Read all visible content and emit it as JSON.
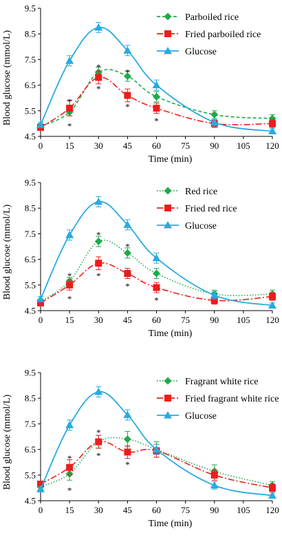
{
  "chart_data": [
    {
      "type": "line",
      "xlabel": "Time (min)",
      "ylabel": "Blood glucose (mmol/L)",
      "xlim": [
        0,
        120
      ],
      "ylim": [
        4.5,
        9.5
      ],
      "x_ticks": [
        "0",
        "15",
        "30",
        "45",
        "60",
        "75",
        "90",
        "105",
        "120"
      ],
      "y_ticks": [
        "4.5",
        "5.5",
        "6.5",
        "7.5",
        "8.5",
        "9.5"
      ],
      "grid": false,
      "legend_position": "top-right",
      "x": [
        0,
        15,
        30,
        45,
        60,
        90,
        120
      ],
      "series": [
        {
          "name": "Parboiled rice",
          "color": "#1faa4a",
          "marker": "diamond",
          "dash": "dashed",
          "values": [
            4.9,
            5.45,
            7.0,
            6.85,
            6.05,
            5.35,
            5.2
          ],
          "errors": [
            0.1,
            0.15,
            0.2,
            0.2,
            0.2,
            0.15,
            0.15
          ]
        },
        {
          "name": "Fried parboiled rice",
          "color": "#ee1c1c",
          "marker": "square",
          "dash": "dashdot",
          "values": [
            4.85,
            5.6,
            6.8,
            6.1,
            5.6,
            5.0,
            5.0
          ],
          "errors": [
            0.1,
            0.3,
            0.25,
            0.25,
            0.2,
            0.15,
            0.15
          ]
        },
        {
          "name": "Glucose",
          "color": "#28aae1",
          "marker": "triangle",
          "dash": "solid",
          "values": [
            4.95,
            7.45,
            8.75,
            7.85,
            6.5,
            5.05,
            4.7
          ],
          "errors": [
            0.1,
            0.2,
            0.2,
            0.2,
            0.2,
            0.15,
            0.1
          ]
        }
      ],
      "significance": [
        {
          "x": 15,
          "y_above": 5.95,
          "y_below": 5.0
        },
        {
          "x": 30,
          "y_above": 7.3,
          "y_below": 6.45
        },
        {
          "x": 45,
          "y_above": 7.1,
          "y_below": 5.75
        },
        {
          "x": 60,
          "y_below": 5.2
        }
      ]
    },
    {
      "type": "line",
      "xlabel": "Time (min)",
      "ylabel": "Blood glucose (mmol/L)",
      "xlim": [
        0,
        120
      ],
      "ylim": [
        4.5,
        9.5
      ],
      "x_ticks": [
        "0",
        "15",
        "30",
        "45",
        "60",
        "75",
        "90",
        "105",
        "120"
      ],
      "y_ticks": [
        "4.5",
        "5.5",
        "6.5",
        "7.5",
        "8.5",
        "9.5"
      ],
      "grid": false,
      "legend_position": "top-right",
      "x": [
        0,
        15,
        30,
        45,
        60,
        90,
        120
      ],
      "series": [
        {
          "name": "Red rice",
          "color": "#1faa4a",
          "marker": "diamond",
          "dash": "dotted",
          "values": [
            4.85,
            5.65,
            7.2,
            6.75,
            5.95,
            5.15,
            5.15
          ],
          "errors": [
            0.1,
            0.15,
            0.2,
            0.2,
            0.2,
            0.15,
            0.15
          ]
        },
        {
          "name": "Fried red rice",
          "color": "#ee1c1c",
          "marker": "square",
          "dash": "dashdot",
          "values": [
            4.8,
            5.5,
            6.35,
            5.95,
            5.4,
            4.9,
            5.05
          ],
          "errors": [
            0.1,
            0.2,
            0.25,
            0.2,
            0.2,
            0.15,
            0.15
          ]
        },
        {
          "name": "Glucose",
          "color": "#28aae1",
          "marker": "triangle",
          "dash": "solid",
          "values": [
            4.95,
            7.45,
            8.75,
            7.85,
            6.55,
            5.1,
            4.7
          ],
          "errors": [
            0.1,
            0.2,
            0.2,
            0.2,
            0.2,
            0.15,
            0.1
          ]
        }
      ],
      "significance": [
        {
          "x": 15,
          "y_above": 5.95,
          "y_below": 5.05
        },
        {
          "x": 30,
          "y_above": 7.55,
          "y_below": 5.95
        },
        {
          "x": 45,
          "y_above": 7.1,
          "y_below": 5.55
        },
        {
          "x": 60,
          "y_below": 5.0
        }
      ]
    },
    {
      "type": "line",
      "xlabel": "Time (min)",
      "ylabel": "Blood glucose (mmol/L)",
      "xlim": [
        0,
        120
      ],
      "ylim": [
        4.5,
        9.5
      ],
      "x_ticks": [
        "0",
        "15",
        "30",
        "45",
        "60",
        "75",
        "90",
        "105",
        "120"
      ],
      "y_ticks": [
        "4.5",
        "5.5",
        "6.5",
        "7.5",
        "8.5",
        "9.5"
      ],
      "grid": false,
      "legend_position": "top-right",
      "x": [
        0,
        15,
        30,
        45,
        60,
        90,
        120
      ],
      "series": [
        {
          "name": "Fragrant white rice",
          "color": "#1faa4a",
          "marker": "diamond",
          "dash": "dotted",
          "values": [
            5.05,
            5.55,
            6.8,
            6.9,
            6.5,
            5.65,
            5.1
          ],
          "errors": [
            0.1,
            0.25,
            0.25,
            0.3,
            0.3,
            0.25,
            0.15
          ]
        },
        {
          "name": "Fried fragrant white rice",
          "color": "#ee1c1c",
          "marker": "square",
          "dash": "dashdot",
          "values": [
            5.15,
            5.8,
            6.8,
            6.4,
            6.45,
            5.5,
            5.0
          ],
          "errors": [
            0.1,
            0.3,
            0.25,
            0.25,
            0.25,
            0.2,
            0.15
          ]
        },
        {
          "name": "Glucose",
          "color": "#28aae1",
          "marker": "triangle",
          "dash": "solid",
          "values": [
            4.95,
            7.45,
            8.75,
            7.85,
            6.5,
            5.1,
            4.7
          ],
          "errors": [
            0.1,
            0.2,
            0.2,
            0.2,
            0.2,
            0.15,
            0.1
          ]
        }
      ],
      "significance": [
        {
          "x": 15,
          "y_above": 6.25,
          "y_below": 5.0
        },
        {
          "x": 30,
          "y_above": 7.25,
          "y_below": 6.35
        },
        {
          "x": 45,
          "y_below": 6.0
        }
      ]
    }
  ]
}
